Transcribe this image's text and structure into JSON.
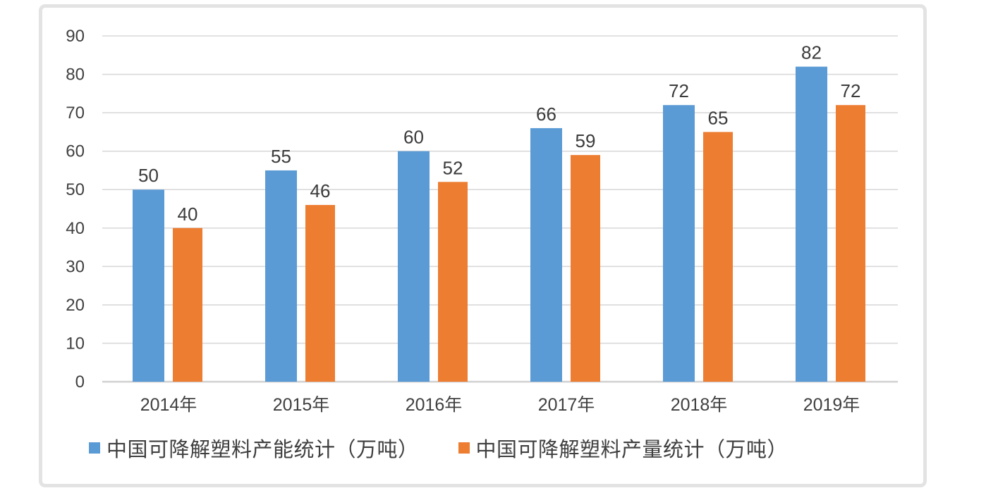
{
  "chart_data": {
    "type": "bar",
    "title": "",
    "categories": [
      "2014年",
      "2015年",
      "2016年",
      "2017年",
      "2018年",
      "2019年"
    ],
    "series": [
      {
        "key": "capacity",
        "name": "中国可降解塑料产能统计（万吨）",
        "color": "#5B9BD5",
        "values": [
          50,
          55,
          60,
          66,
          72,
          82
        ]
      },
      {
        "key": "output",
        "name": "中国可降解塑料产量统计（万吨）",
        "color": "#ED7D31",
        "values": [
          40,
          46,
          52,
          59,
          65,
          72
        ]
      }
    ],
    "xlabel": "",
    "ylabel": "",
    "ylim": [
      0,
      90
    ],
    "yticks": [
      0,
      10,
      20,
      30,
      40,
      50,
      60,
      70,
      80,
      90
    ],
    "grid": true,
    "data_labels": true,
    "legend_position": "bottom"
  },
  "style": {
    "gridline_color": "#d9d9d9",
    "baseline_color": "#d0d0d0",
    "axis_tick_label_color": "#404040",
    "value_label_color": "#3b3b3b",
    "frame_border_color": "#e3e3e3",
    "background_color": "#ffffff"
  }
}
